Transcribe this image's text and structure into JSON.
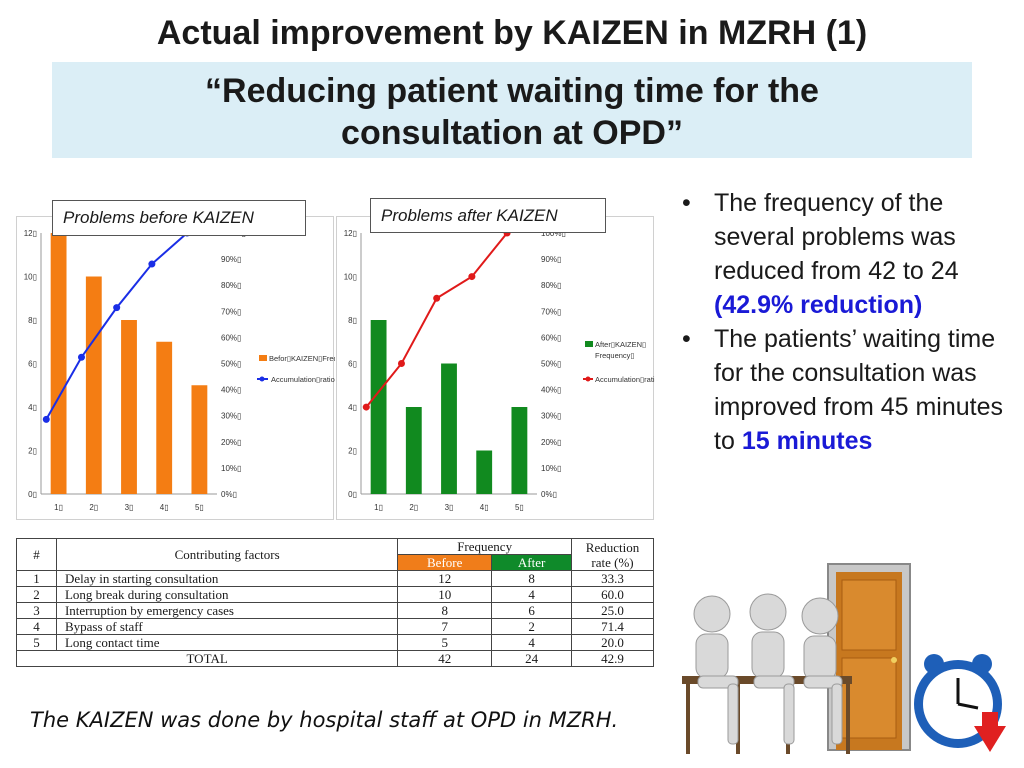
{
  "title": "Actual improvement by KAIZEN in MZRH (1)",
  "subtitle_line1": "“Reducing patient waiting time for the",
  "subtitle_line2": "consultation at OPD”",
  "chart_labels": {
    "before": "Problems before KAIZEN",
    "after": "Problems after KAIZEN"
  },
  "chart_data": [
    {
      "type": "bar",
      "title": "Problems before KAIZEN",
      "categories": [
        "1▯",
        "2▯",
        "3▯",
        "4▯",
        "5▯"
      ],
      "values": [
        12,
        10,
        8,
        7,
        5
      ],
      "bar_color": "#f47d13",
      "ylim": [
        0,
        12
      ],
      "y_ticks": [
        "0▯",
        "2▯",
        "4▯",
        "6▯",
        "8▯",
        "10▯",
        "12▯"
      ],
      "y2lim": [
        0,
        100
      ],
      "y2_ticks": [
        "0%▯",
        "10%▯",
        "20%▯",
        "30%▯",
        "40%▯",
        "50%▯",
        "60%▯",
        "70%▯",
        "80%▯",
        "90%▯",
        "100%▯"
      ],
      "line": {
        "name": "Accumulation▯ratio▯",
        "values": [
          28.6,
          52.4,
          71.4,
          88.1,
          100
        ],
        "color": "#1a2ee6"
      },
      "legend": [
        "Befor▯KAIZEN▯Frequency▯",
        "Accumulation▯ratio▯"
      ]
    },
    {
      "type": "bar",
      "title": "Problems after KAIZEN",
      "categories": [
        "1▯",
        "2▯",
        "3▯",
        "4▯",
        "5▯"
      ],
      "values": [
        8,
        4,
        6,
        2,
        4
      ],
      "bar_color": "#118a1f",
      "ylim": [
        0,
        12
      ],
      "y_ticks": [
        "0▯",
        "2▯",
        "4▯",
        "6▯",
        "8▯",
        "10▯",
        "12▯"
      ],
      "y2lim": [
        0,
        100
      ],
      "y2_ticks": [
        "0%▯",
        "10%▯",
        "20%▯",
        "30%▯",
        "40%▯",
        "50%▯",
        "60%▯",
        "70%▯",
        "80%▯",
        "90%▯",
        "100%▯"
      ],
      "line": {
        "name": "Accumulation▯ratio▯",
        "values": [
          33.3,
          50.0,
          75.0,
          83.3,
          100
        ],
        "color": "#e01a1a"
      },
      "legend": [
        "After▯KAIZEN▯",
        "Frequency▯",
        "Accumulation▯ratio▯"
      ]
    }
  ],
  "bullets": {
    "b1_text": "The frequency of the several problems was reduced from 42 to 24",
    "b1_highlight": "(42.9% reduction)",
    "b2_text": "The  patients’ waiting time for the consultation was improved from 45 minutes to",
    "b2_highlight": "15 minutes"
  },
  "table": {
    "col_num": "#",
    "col_factors": "Contributing factors",
    "col_frequency": "Frequency",
    "col_before": "Before",
    "col_after": "After",
    "col_reduction_1": "Reduction",
    "col_reduction_2": "rate (%)",
    "rows": [
      {
        "num": "1",
        "factor": "Delay in starting consultation",
        "before": "12",
        "after": "8",
        "rate": "33.3"
      },
      {
        "num": "2",
        "factor": "Long break during consultation",
        "before": "10",
        "after": "4",
        "rate": "60.0"
      },
      {
        "num": "3",
        "factor": "Interruption by emergency cases",
        "before": "8",
        "after": "6",
        "rate": "25.0"
      },
      {
        "num": "4",
        "factor": "Bypass of staff",
        "before": "7",
        "after": "2",
        "rate": "71.4"
      },
      {
        "num": "5",
        "factor": "Long contact time",
        "before": "5",
        "after": "4",
        "rate": "20.0"
      }
    ],
    "total_label": "TOTAL",
    "total_before": "42",
    "total_after": "24",
    "total_rate": "42.9"
  },
  "footer": "The KAIZEN was done by hospital staff at OPD in MZRH.",
  "colors": {
    "orange": "#f47d13",
    "green": "#118a1f",
    "blue_line": "#1a2ee6",
    "red_line": "#e01a1a",
    "highlight": "#1a1ad6",
    "subtitle_bg": "#dbeef6"
  }
}
